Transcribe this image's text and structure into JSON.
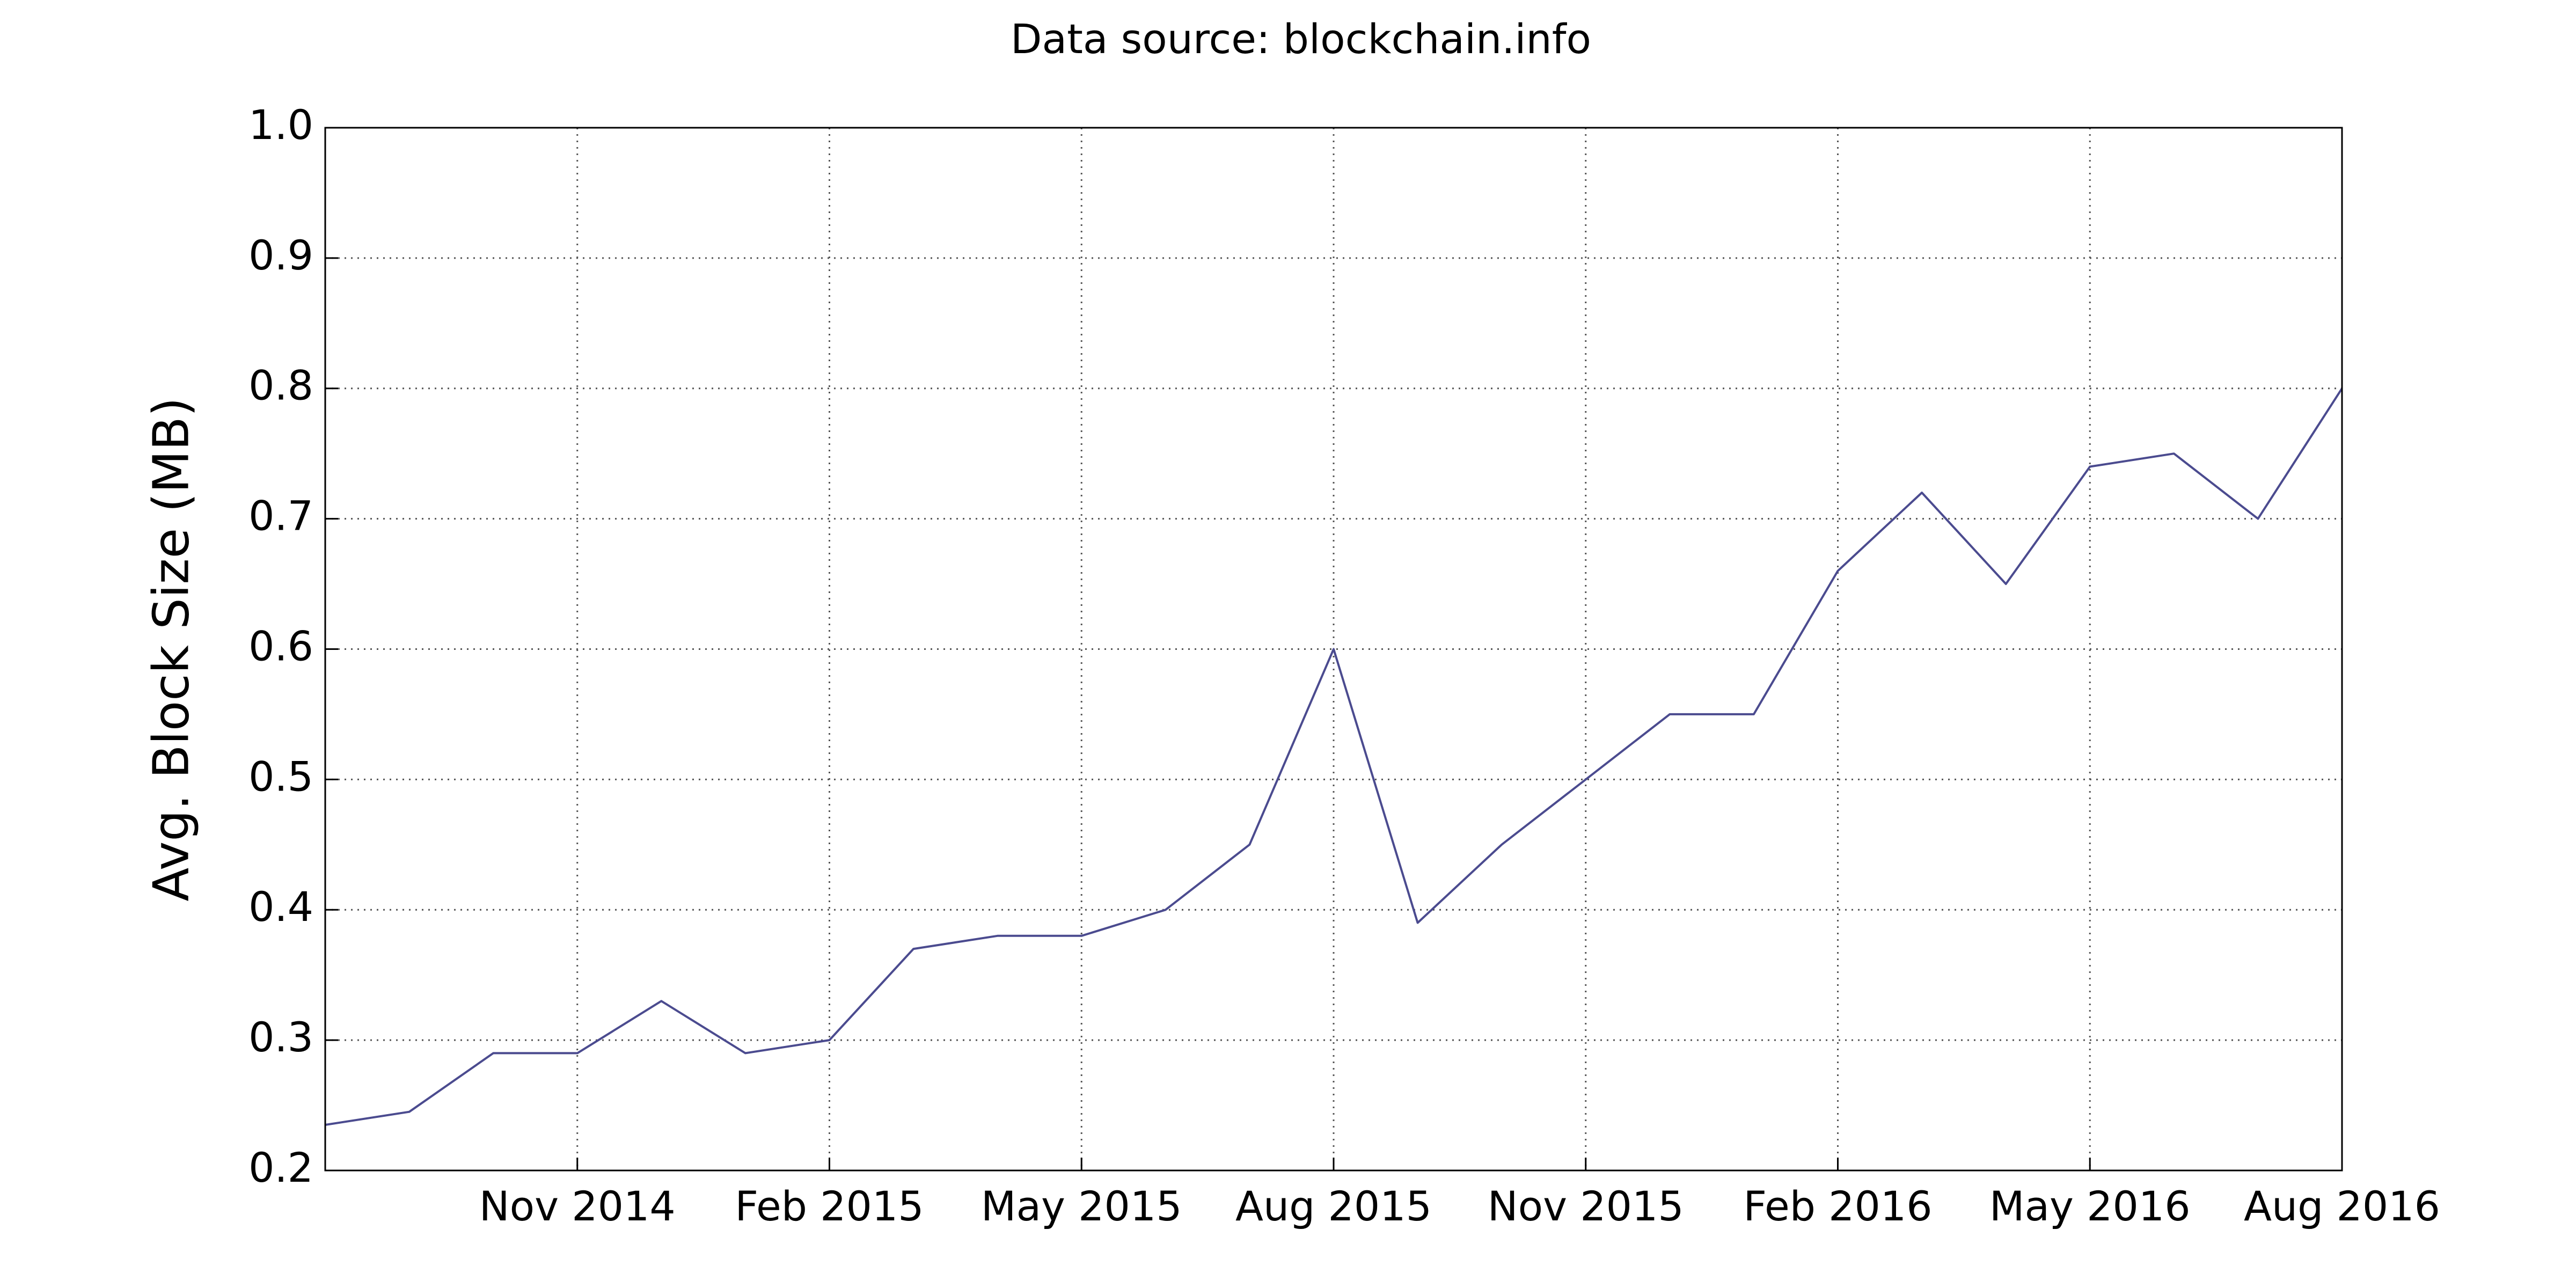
{
  "chart_data": {
    "type": "line",
    "title": "Data source: blockchain.info",
    "ylabel": "Avg. Block Size (MB)",
    "x": [
      "2014-08",
      "2014-09",
      "2014-10",
      "2014-11",
      "2014-12",
      "2015-01",
      "2015-02",
      "2015-03",
      "2015-04",
      "2015-05",
      "2015-06",
      "2015-07",
      "2015-08",
      "2015-09",
      "2015-10",
      "2015-11",
      "2015-12",
      "2016-01",
      "2016-02",
      "2016-03",
      "2016-04",
      "2016-05",
      "2016-06",
      "2016-07",
      "2016-08"
    ],
    "values": [
      0.235,
      0.245,
      0.29,
      0.29,
      0.33,
      0.29,
      0.3,
      0.37,
      0.38,
      0.38,
      0.4,
      0.45,
      0.6,
      0.39,
      0.45,
      0.5,
      0.55,
      0.55,
      0.66,
      0.72,
      0.65,
      0.74,
      0.75,
      0.7,
      0.8
    ],
    "color": "#4b4b8f",
    "xlim": [
      "2014-08",
      "2016-08"
    ],
    "xticks": [
      {
        "value": "2014-11",
        "label": "Nov 2014"
      },
      {
        "value": "2015-02",
        "label": "Feb 2015"
      },
      {
        "value": "2015-05",
        "label": "May 2015"
      },
      {
        "value": "2015-08",
        "label": "Aug 2015"
      },
      {
        "value": "2015-11",
        "label": "Nov 2015"
      },
      {
        "value": "2016-02",
        "label": "Feb 2016"
      },
      {
        "value": "2016-05",
        "label": "May 2016"
      },
      {
        "value": "2016-08",
        "label": "Aug 2016"
      }
    ],
    "ylim": [
      0.2,
      1.0
    ],
    "yticks": [
      0.2,
      0.3,
      0.4,
      0.5,
      0.6,
      0.7,
      0.8,
      0.9,
      {
        "value": 1,
        "label": "1.0"
      }
    ],
    "grid": true
  }
}
